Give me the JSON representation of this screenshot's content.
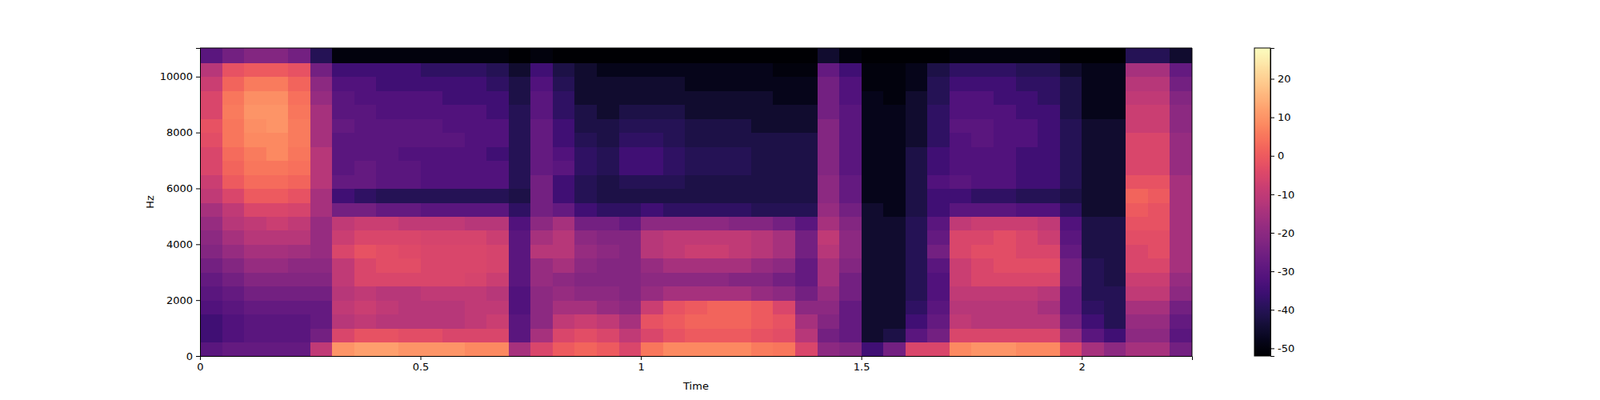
{
  "chart_data": {
    "type": "heatmap",
    "x_label": "Time",
    "y_label": "Hz",
    "xlim": [
      0,
      2.25
    ],
    "ylim": [
      0,
      11025
    ],
    "xticks": [
      0,
      0.5,
      1,
      1.5,
      2
    ],
    "yticks": [
      0,
      2000,
      4000,
      6000,
      8000,
      10000
    ],
    "colorbar_range": [
      -52,
      28
    ],
    "colorbar_ticks": [
      -50,
      -40,
      -30,
      -20,
      -10,
      0,
      10,
      20
    ],
    "x_bins": [
      0,
      0.05,
      0.1,
      0.15,
      0.2,
      0.25,
      0.3,
      0.35,
      0.4,
      0.45,
      0.5,
      0.55,
      0.6,
      0.65,
      0.7,
      0.75,
      0.8,
      0.85,
      0.9,
      0.95,
      1,
      1.05,
      1.1,
      1.15,
      1.2,
      1.25,
      1.3,
      1.35,
      1.4,
      1.45,
      1.5,
      1.55,
      1.6,
      1.65,
      1.7,
      1.75,
      1.8,
      1.85,
      1.9,
      1.95,
      2,
      2.05,
      2.1,
      2.15,
      2.2,
      2.25
    ],
    "y_bins": [
      0,
      500,
      1000,
      1500,
      2000,
      2500,
      3000,
      3500,
      4000,
      4500,
      5000,
      5500,
      6000,
      6500,
      7000,
      7500,
      8000,
      8500,
      9000,
      9500,
      10000,
      10500,
      11025
    ],
    "z": [
      [
        -30,
        -35,
        -35,
        -32,
        -30,
        -28,
        -25,
        -22,
        -20,
        -18,
        -15,
        -10,
        -8,
        -5,
        -5,
        -3,
        -2,
        -5,
        -5,
        -8,
        -12,
        -30
      ],
      [
        -28,
        -32,
        -32,
        -30,
        -28,
        -25,
        -22,
        -18,
        -15,
        -12,
        -10,
        -5,
        0,
        2,
        3,
        5,
        5,
        6,
        5,
        2,
        -2,
        -25
      ],
      [
        -28,
        -30,
        -30,
        -28,
        -25,
        -22,
        -18,
        -15,
        -12,
        -10,
        -5,
        0,
        3,
        5,
        6,
        8,
        9,
        10,
        9,
        6,
        0,
        -22
      ],
      [
        -28,
        -30,
        -30,
        -28,
        -25,
        -22,
        -18,
        -15,
        -12,
        -8,
        -5,
        0,
        3,
        5,
        8,
        8,
        10,
        10,
        9,
        6,
        0,
        -22
      ],
      [
        -28,
        -30,
        -30,
        -28,
        -25,
        -22,
        -20,
        -16,
        -12,
        -10,
        -6,
        -2,
        2,
        4,
        5,
        6,
        6,
        5,
        4,
        2,
        -2,
        -25
      ],
      [
        -10,
        -25,
        -28,
        -28,
        -25,
        -22,
        -20,
        -18,
        -18,
        -18,
        -15,
        -15,
        -12,
        -12,
        -12,
        -15,
        -15,
        -15,
        -18,
        -20,
        -25,
        -40
      ],
      [
        10,
        -5,
        -12,
        -10,
        -12,
        -10,
        -10,
        -5,
        -8,
        -10,
        -25,
        -35,
        -28,
        -30,
        -30,
        -30,
        -28,
        -30,
        -30,
        -32,
        -35,
        -50
      ],
      [
        12,
        -2,
        -10,
        -8,
        -10,
        -5,
        -5,
        -2,
        -5,
        -8,
        -25,
        -38,
        -28,
        -28,
        -30,
        -30,
        -30,
        -30,
        -32,
        -32,
        -35,
        -50
      ],
      [
        12,
        -2,
        -12,
        -10,
        -12,
        -5,
        -3,
        -3,
        -5,
        -8,
        -28,
        -40,
        -30,
        -30,
        -30,
        -30,
        -30,
        -32,
        -32,
        -35,
        -35,
        -50
      ],
      [
        10,
        -3,
        -12,
        -12,
        -12,
        -5,
        -3,
        -4,
        -5,
        -10,
        -28,
        -40,
        -30,
        -30,
        -32,
        -30,
        -30,
        -32,
        -32,
        -35,
        -35,
        -50
      ],
      [
        10,
        -3,
        -12,
        -12,
        -10,
        -5,
        -5,
        -5,
        -6,
        -10,
        -30,
        -40,
        -32,
        -32,
        -32,
        -30,
        -30,
        -32,
        -32,
        -35,
        -38,
        -50
      ],
      [
        10,
        -5,
        -12,
        -12,
        -10,
        -5,
        -5,
        -5,
        -6,
        -10,
        -30,
        -40,
        -32,
        -32,
        -32,
        -30,
        -32,
        -32,
        -35,
        -35,
        -38,
        -50
      ],
      [
        8,
        -5,
        -10,
        -10,
        -10,
        -6,
        -5,
        -5,
        -6,
        -12,
        -30,
        -40,
        -32,
        -32,
        -32,
        -32,
        -32,
        -32,
        -35,
        -35,
        -38,
        -50
      ],
      [
        8,
        -5,
        -8,
        -10,
        -12,
        -8,
        -6,
        -6,
        -8,
        -12,
        -30,
        -40,
        -32,
        -32,
        -35,
        -32,
        -32,
        -35,
        -35,
        -38,
        -40,
        -50
      ],
      [
        -15,
        -30,
        -30,
        -32,
        -32,
        -30,
        -30,
        -30,
        -30,
        -32,
        -38,
        -42,
        -40,
        -40,
        -40,
        -40,
        -40,
        -40,
        -42,
        -42,
        -45,
        -52
      ],
      [
        -5,
        -15,
        -20,
        -20,
        -20,
        -18,
        -18,
        -12,
        -15,
        -20,
        -25,
        -25,
        -25,
        -28,
        -28,
        -28,
        -28,
        -30,
        -30,
        -32,
        -35,
        -50
      ],
      [
        0,
        -5,
        -10,
        -15,
        -18,
        -20,
        -15,
        -12,
        -12,
        -15,
        -28,
        -35,
        -35,
        -30,
        -32,
        -35,
        -35,
        -38,
        -38,
        -40,
        -42,
        -52
      ],
      [
        2,
        -3,
        -8,
        -15,
        -20,
        -22,
        -20,
        -18,
        -20,
        -25,
        -35,
        -40,
        -40,
        -38,
        -38,
        -40,
        -42,
        -42,
        -45,
        -45,
        -45,
        -52
      ],
      [
        0,
        -5,
        -10,
        -18,
        -20,
        -22,
        -22,
        -20,
        -22,
        -25,
        -38,
        -42,
        -42,
        -40,
        -40,
        -42,
        -42,
        -45,
        -45,
        -45,
        -48,
        -52
      ],
      [
        -5,
        -10,
        -15,
        -20,
        -22,
        -22,
        -22,
        -22,
        -22,
        -28,
        -38,
        -42,
        -40,
        -35,
        -35,
        -38,
        -40,
        -42,
        -45,
        -45,
        -48,
        -52
      ],
      [
        5,
        -5,
        -2,
        -8,
        -18,
        -20,
        -18,
        -12,
        -12,
        -20,
        -35,
        -42,
        -40,
        -35,
        -35,
        -38,
        -40,
        -42,
        -45,
        -45,
        -48,
        -52
      ],
      [
        8,
        -2,
        0,
        -2,
        -15,
        -20,
        -15,
        -10,
        -10,
        -20,
        -38,
        -42,
        -40,
        -38,
        -38,
        -40,
        -40,
        -42,
        -45,
        -45,
        -48,
        -52
      ],
      [
        8,
        0,
        2,
        0,
        -15,
        -20,
        -15,
        -8,
        -10,
        -20,
        -38,
        -42,
        -42,
        -40,
        -40,
        -42,
        -42,
        -45,
        -45,
        -48,
        -48,
        -52
      ],
      [
        8,
        0,
        2,
        2,
        -15,
        -20,
        -15,
        -8,
        -10,
        -20,
        -38,
        -42,
        -42,
        -40,
        -40,
        -42,
        -42,
        -45,
        -45,
        -48,
        -48,
        -52
      ],
      [
        8,
        0,
        2,
        2,
        -15,
        -22,
        -15,
        -10,
        -10,
        -22,
        -38,
        -42,
        -42,
        -40,
        -40,
        -42,
        -42,
        -45,
        -45,
        -48,
        -48,
        -52
      ],
      [
        6,
        -2,
        0,
        0,
        -18,
        -22,
        -18,
        -12,
        -12,
        -22,
        -40,
        -42,
        -42,
        -42,
        -42,
        -42,
        -45,
        -45,
        -45,
        -48,
        -48,
        -52
      ],
      [
        5,
        -3,
        -2,
        -5,
        -20,
        -25,
        -20,
        -15,
        -15,
        -25,
        -40,
        -42,
        -42,
        -42,
        -42,
        -42,
        -45,
        -45,
        -48,
        -48,
        -50,
        -52
      ],
      [
        -5,
        -12,
        -15,
        -20,
        -25,
        -28,
        -28,
        -25,
        -25,
        -30,
        -40,
        -42,
        -42,
        -42,
        -42,
        -42,
        -45,
        -45,
        -48,
        -48,
        -50,
        -52
      ],
      [
        -20,
        -25,
        -22,
        -20,
        -18,
        -15,
        -15,
        -12,
        -10,
        -15,
        -18,
        -20,
        -20,
        -22,
        -22,
        -22,
        -22,
        -25,
        -25,
        -25,
        -28,
        -45
      ],
      [
        -22,
        -28,
        -28,
        -28,
        -25,
        -25,
        -22,
        -20,
        -20,
        -22,
        -25,
        -28,
        -28,
        -30,
        -30,
        -30,
        -30,
        -30,
        -32,
        -32,
        -35,
        -50
      ],
      [
        -35,
        -45,
        -45,
        -45,
        -45,
        -45,
        -45,
        -45,
        -45,
        -45,
        -45,
        -48,
        -48,
        -48,
        -48,
        -48,
        -48,
        -48,
        -48,
        -50,
        -50,
        -52
      ],
      [
        -25,
        -42,
        -45,
        -45,
        -45,
        -45,
        -45,
        -45,
        -45,
        -45,
        -48,
        -48,
        -48,
        -48,
        -48,
        -48,
        -48,
        -48,
        -50,
        -50,
        -50,
        -52
      ],
      [
        -5,
        -30,
        -35,
        -38,
        -40,
        -40,
        -40,
        -40,
        -40,
        -40,
        -42,
        -42,
        -42,
        -42,
        -42,
        -45,
        -45,
        -45,
        -45,
        -48,
        -48,
        -52
      ],
      [
        -5,
        -25,
        -28,
        -30,
        -32,
        -32,
        -30,
        -25,
        -28,
        -30,
        -35,
        -35,
        -32,
        -35,
        -35,
        -38,
        -38,
        -38,
        -40,
        -40,
        -42,
        -52
      ],
      [
        8,
        -5,
        -10,
        -12,
        -10,
        -8,
        -8,
        -5,
        -5,
        -10,
        -30,
        -35,
        -30,
        -32,
        -32,
        -32,
        -30,
        -32,
        -32,
        -35,
        -38,
        -50
      ],
      [
        10,
        -5,
        -12,
        -12,
        -10,
        -5,
        -5,
        -3,
        -5,
        -8,
        -30,
        -38,
        -32,
        -32,
        -32,
        -30,
        -30,
        -32,
        -32,
        -35,
        -38,
        -50
      ],
      [
        10,
        -5,
        -12,
        -12,
        -10,
        -5,
        -3,
        -3,
        -3,
        -8,
        -30,
        -38,
        -32,
        -32,
        -32,
        -32,
        -32,
        -32,
        -35,
        -35,
        -38,
        -50
      ],
      [
        8,
        -5,
        -12,
        -12,
        -10,
        -5,
        -3,
        -5,
        -5,
        -8,
        -32,
        -40,
        -35,
        -35,
        -35,
        -32,
        -32,
        -35,
        -35,
        -38,
        -40,
        -50
      ],
      [
        8,
        -5,
        -12,
        -15,
        -12,
        -5,
        -3,
        -5,
        -8,
        -10,
        -32,
        -40,
        -35,
        -35,
        -35,
        -35,
        -35,
        -35,
        -38,
        -38,
        -40,
        -50
      ],
      [
        -5,
        -18,
        -25,
        -28,
        -28,
        -25,
        -25,
        -28,
        -30,
        -32,
        -38,
        -42,
        -40,
        -40,
        -40,
        -40,
        -40,
        -42,
        -42,
        -42,
        -45,
        -52
      ],
      [
        -15,
        -30,
        -35,
        -38,
        -40,
        -40,
        -40,
        -42,
        -42,
        -42,
        -45,
        -45,
        -45,
        -45,
        -45,
        -45,
        -45,
        -48,
        -48,
        -48,
        -48,
        -52
      ],
      [
        -20,
        -35,
        -40,
        -40,
        -40,
        -42,
        -42,
        -42,
        -42,
        -42,
        -45,
        -45,
        -45,
        -45,
        -45,
        -45,
        -45,
        -48,
        -48,
        -48,
        -48,
        -52
      ],
      [
        -15,
        -20,
        -18,
        -15,
        -10,
        -8,
        -5,
        -5,
        -3,
        -2,
        0,
        2,
        -2,
        -5,
        -5,
        -5,
        -8,
        -8,
        -10,
        -12,
        -15,
        -40
      ],
      [
        -15,
        -20,
        -18,
        -15,
        -10,
        -8,
        -5,
        -3,
        -3,
        -2,
        -2,
        0,
        -2,
        -5,
        -5,
        -5,
        -8,
        -8,
        -10,
        -12,
        -15,
        -40
      ],
      [
        -25,
        -30,
        -28,
        -25,
        -20,
        -18,
        -15,
        -15,
        -15,
        -15,
        -15,
        -15,
        -15,
        -18,
        -18,
        -18,
        -20,
        -20,
        -22,
        -25,
        -28,
        -45
      ]
    ]
  }
}
